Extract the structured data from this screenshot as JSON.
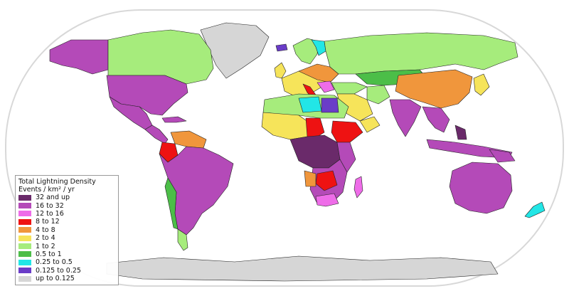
{
  "legend": {
    "title": "Total Lightning Density",
    "subtitle": "Events / km² / yr",
    "items": [
      {
        "label": "32 and up",
        "color": "#6a2a6a"
      },
      {
        "label": "16 to 32",
        "color": "#b44ab8"
      },
      {
        "label": "12 to 16",
        "color": "#ee6ce8"
      },
      {
        "label": "8 to 12",
        "color": "#ee1212"
      },
      {
        "label": "4 to 8",
        "color": "#f0963c"
      },
      {
        "label": "2 to 4",
        "color": "#f6e45a"
      },
      {
        "label": "1 to 2",
        "color": "#a6ec7c"
      },
      {
        "label": "0.5 to 1",
        "color": "#4cbe48"
      },
      {
        "label": "0.25 to 0.5",
        "color": "#22e6e6"
      },
      {
        "label": "0.125 to 0.25",
        "color": "#6a3cc8"
      },
      {
        "label": "up to 0.125",
        "color": "#d6d6d6"
      }
    ]
  },
  "colors": {
    "ocean": "#ffffff",
    "frame": "#d8d8d8",
    "border": "#222222"
  }
}
